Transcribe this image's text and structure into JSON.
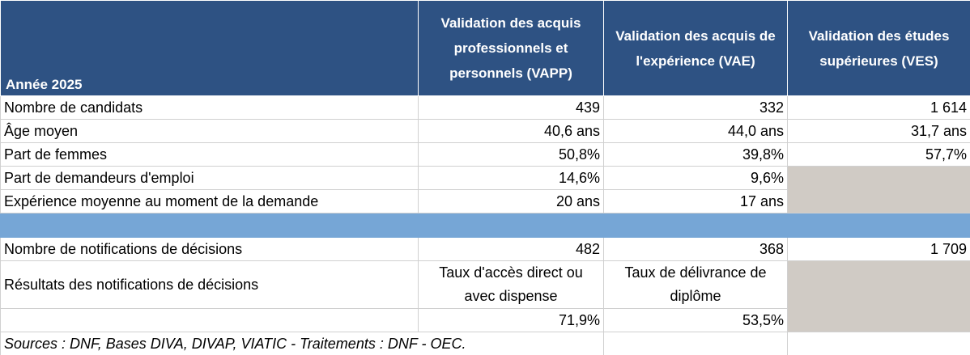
{
  "header": {
    "year": "Année 2025",
    "col_vapp": "Validation des acquis professionnels et personnels (VAPP)",
    "col_vae": "Validation des acquis de l'expérience (VAE)",
    "col_ves": "Validation des études supérieures (VES)"
  },
  "rows": [
    {
      "label": "Nombre de candidats",
      "vapp": "439",
      "vae": "332",
      "ves": "1 614"
    },
    {
      "label": "Âge moyen",
      "vapp": "40,6 ans",
      "vae": "44,0 ans",
      "ves": "31,7 ans"
    },
    {
      "label": "Part de femmes",
      "vapp": "50,8%",
      "vae": "39,8%",
      "ves": "57,7%"
    },
    {
      "label": "Part de demandeurs d'emploi",
      "vapp": "14,6%",
      "vae": "9,6%",
      "ves": ""
    },
    {
      "label": "Expérience moyenne au moment de la demande",
      "vapp": "20 ans",
      "vae": "17 ans",
      "ves": ""
    }
  ],
  "decisions": {
    "label": "Nombre de notifications de décisions",
    "vapp": "482",
    "vae": "368",
    "ves": "1 709"
  },
  "results": {
    "label": "Résultats des notifications de décisions",
    "vapp_caption": "Taux d'accès direct ou avec dispense",
    "vae_caption": "Taux de délivrance de diplôme",
    "vapp_value": "71,9%",
    "vae_value": "53,5%"
  },
  "source": "Sources : DNF, Bases DIVA, DIVAP, VIATIC - Traitements : DNF - OEC.",
  "colors": {
    "header_bg": "#2e5283",
    "band_bg": "#76a6d6",
    "empty_bg": "#d0cbc5"
  }
}
